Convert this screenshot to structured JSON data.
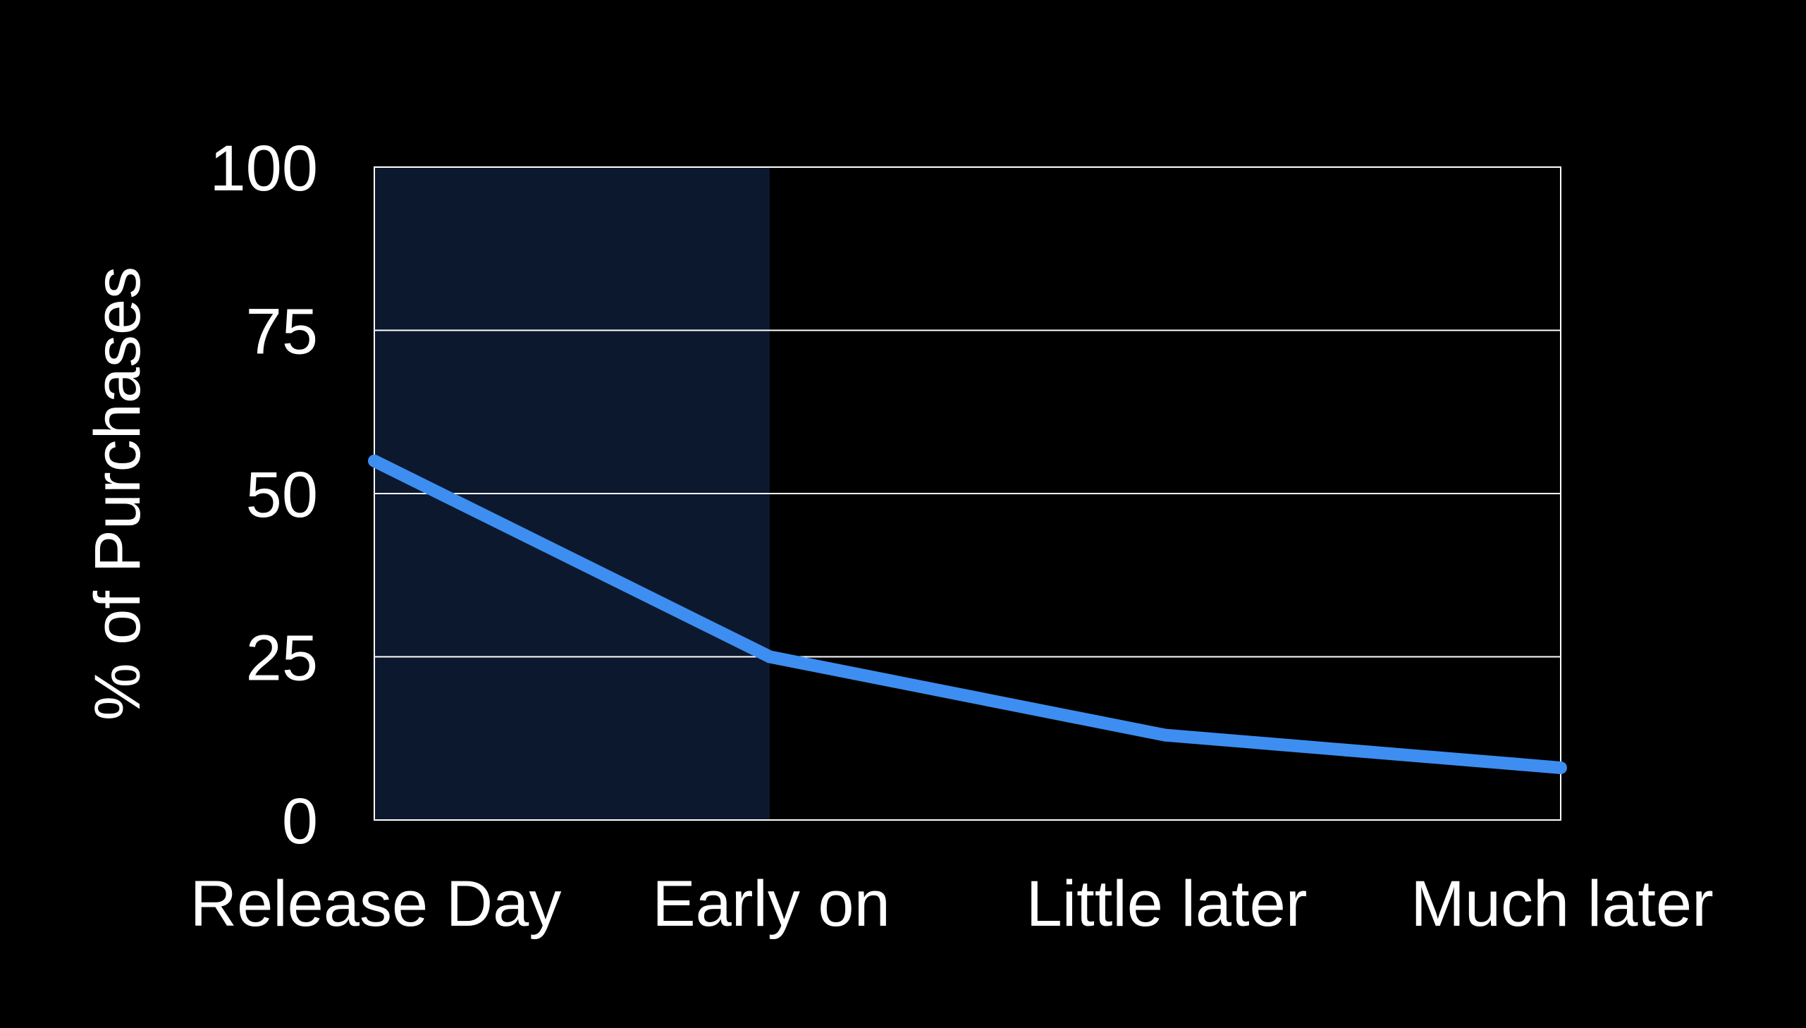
{
  "chart_data": {
    "type": "line",
    "categories": [
      "Release Day",
      "Early on",
      "Little later",
      "Much later"
    ],
    "series": [
      {
        "values": [
          55,
          25,
          13,
          8
        ]
      }
    ],
    "ylabel": "% of Purchases",
    "xlabel": "",
    "ylim": [
      0,
      100
    ],
    "yticks": [
      0,
      25,
      50,
      75,
      100
    ],
    "grid": true,
    "highlight": {
      "from_category": "Release Day",
      "to_category": "Early on"
    },
    "colors": {
      "background": "#000000",
      "line": "#3d8ef0",
      "highlight": "#0c182e",
      "grid": "#ffffff",
      "text": "#ffffff"
    }
  }
}
